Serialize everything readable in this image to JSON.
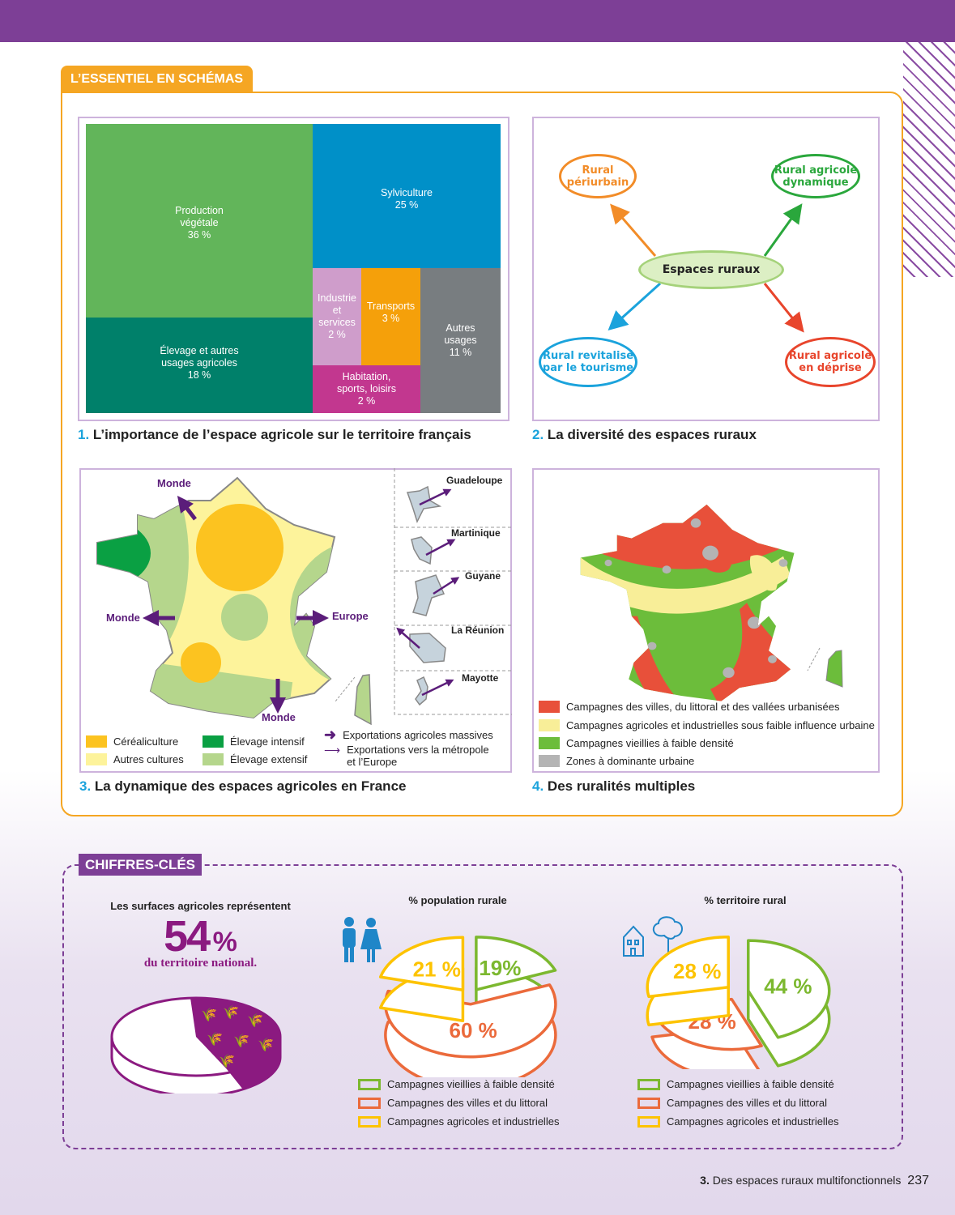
{
  "header": {
    "section_tab": "L’ESSENTIEL EN SCHÉMAS"
  },
  "doc1": {
    "num": "1.",
    "caption": "L’importance de l’espace agricole sur le territoire français",
    "chart_data": {
      "type": "treemap",
      "unit": "%",
      "items": [
        {
          "label": "Production végétale",
          "value": 36,
          "color": "#62b55a"
        },
        {
          "label": "Élevage et autres usages agricoles",
          "value": 18,
          "color": "#00806a"
        },
        {
          "label": "Sylviculture",
          "value": 25,
          "color": "#0090c8"
        },
        {
          "label": "Industrie et services",
          "value": 2,
          "color": "#cf9dcb"
        },
        {
          "label": "Transports",
          "value": 3,
          "color": "#f5a00a"
        },
        {
          "label": "Habitation, sports, loisirs",
          "value": 2,
          "color": "#c2378f"
        },
        {
          "label": "Autres usages",
          "value": 11,
          "color": "#787d80"
        }
      ]
    },
    "labels": {
      "prod1": "Production",
      "prod2": "végétale",
      "prod3": "36 %",
      "elev1": "Élevage et autres",
      "elev2": "usages agricoles",
      "elev3": "18 %",
      "sylv1": "Sylviculture",
      "sylv2": "25 %",
      "ind1": "Industrie",
      "ind2": "et",
      "ind3": "services",
      "ind4": "2 %",
      "tr1": "Transports",
      "tr2": "3 %",
      "hab1": "Habitation,",
      "hab2": "sports, loisirs",
      "hab3": "2 %",
      "aut1": "Autres",
      "aut2": "usages",
      "aut3": "11 %"
    }
  },
  "doc2": {
    "num": "2.",
    "caption": "La diversité des espaces ruraux",
    "center": "Espaces ruraux",
    "nodes": [
      {
        "l1": "Rural",
        "l2": "périurbain",
        "color": "#f28c28"
      },
      {
        "l1": "Rural agricole",
        "l2": "dynamique",
        "color": "#2aa73c"
      },
      {
        "l1": "Rural revitalisé",
        "l2": "par le tourisme",
        "color": "#1ba3dc"
      },
      {
        "l1": "Rural agricole",
        "l2": "en déprise",
        "color": "#e8452c"
      }
    ]
  },
  "doc3": {
    "num": "3.",
    "caption": "La dynamique des espaces agricoles en France",
    "arrows": {
      "nw": "Monde",
      "w": "Monde",
      "s": "Monde",
      "e": "Europe"
    },
    "dom": [
      "Guadeloupe",
      "Martinique",
      "Guyane",
      "La Réunion",
      "Mayotte"
    ],
    "legend": {
      "cereal": "Céréaliculture",
      "autres": "Autres cultures",
      "intensif": "Élevage intensif",
      "extensif": "Élevage extensif",
      "massive": "Exportations agricoles massives",
      "metro1": "Exportations vers la métropole",
      "metro2": "et l’Europe"
    },
    "colors": {
      "cereal": "#fcc320",
      "autres": "#fdf39b",
      "intensif": "#0aa043",
      "extensif": "#b5d68c",
      "arrow": "#5b1d7a"
    }
  },
  "doc4": {
    "num": "4.",
    "caption": "Des ruralités multiples",
    "legend": [
      {
        "label": "Campagnes des villes, du littoral et des vallées urbanisées",
        "color": "#e8503a"
      },
      {
        "label": "Campagnes agricoles et industrielles sous faible influence urbaine",
        "color": "#f8ee98"
      },
      {
        "label": "Campagnes vieillies à faible densité",
        "color": "#6cbd3b"
      },
      {
        "label": "Zones à dominante urbaine",
        "color": "#b4b4b4"
      }
    ]
  },
  "keyfigures": {
    "tab": "CHIFFRES-CLÉS",
    "surface": {
      "line1": "Les surfaces agricoles représentent",
      "value": "54",
      "unit": "%",
      "line2": "du territoire national.",
      "color": "#8b1a80"
    },
    "chart_data": [
      {
        "type": "pie",
        "title": "% population rurale",
        "categories": [
          "Campagnes vieillies à faible densité",
          "Campagnes des villes et du littoral",
          "Campagnes agricoles et industrielles"
        ],
        "values": [
          19,
          60,
          21
        ],
        "labels": [
          "19%",
          "60 %",
          "21 %"
        ],
        "colors": [
          "#7cb82f",
          "#eb6a3b",
          "#fdc300"
        ]
      },
      {
        "type": "pie",
        "title": "% territoire rural",
        "categories": [
          "Campagnes vieillies à faible densité",
          "Campagnes des villes et du littoral",
          "Campagnes agricoles et industrielles"
        ],
        "values": [
          44,
          28,
          28
        ],
        "labels": [
          "44 %",
          "28 %",
          "28 %"
        ],
        "colors": [
          "#7cb82f",
          "#eb6a3b",
          "#fdc300"
        ]
      }
    ]
  },
  "footer": {
    "chapter_num": "3.",
    "chapter": "Des espaces ruraux multifonctionnels",
    "page": "237"
  }
}
